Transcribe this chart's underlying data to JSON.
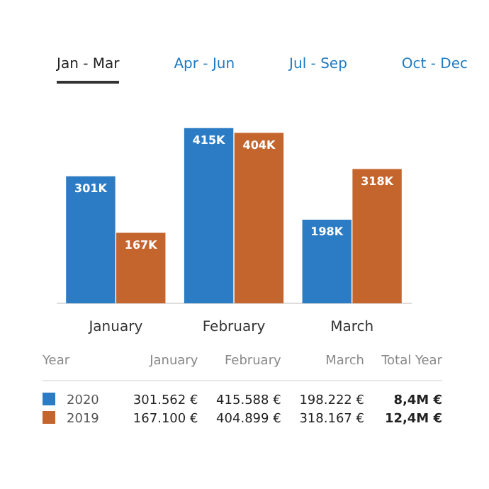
{
  "chart_data": {
    "type": "bar",
    "categories": [
      "January",
      "February",
      "March"
    ],
    "series": [
      {
        "name": "2020",
        "color": "#2b7cc4",
        "values": [
          301,
          415,
          198
        ],
        "value_labels": [
          "301K",
          "415K",
          "198K"
        ]
      },
      {
        "name": "2019",
        "color": "#c4652e",
        "values": [
          167,
          404,
          318
        ],
        "value_labels": [
          "167K",
          "404K",
          "318K"
        ]
      }
    ],
    "legend": "bottom",
    "annotations": [
      "Jan - Mar",
      "Apr - Jun",
      "Jul - Sep",
      "Oct - Dec",
      "Year",
      "Total Year",
      "301.562 €",
      "415.588 €",
      "198.222 €",
      "8,4M €",
      "167.100 €",
      "404.899 €",
      "318.167 €",
      "12,4M €"
    ]
  }
}
